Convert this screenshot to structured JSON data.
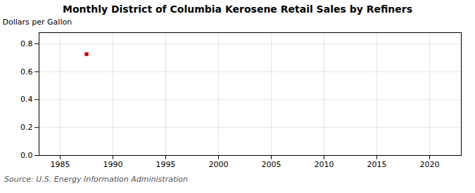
{
  "chart_data": {
    "type": "scatter",
    "title": "Monthly District of Columbia Kerosene Retail Sales by Refiners",
    "ylabel": "Dollars per Gallon",
    "source": "Source: U.S. Energy Information Administration",
    "x": [
      1987.5
    ],
    "values": [
      0.726
    ],
    "color": "#cc0000",
    "marker": "square",
    "xlim": [
      1983,
      2023
    ],
    "ylim": [
      0.0,
      0.88
    ],
    "xticks": [
      1985,
      1990,
      1995,
      2000,
      2005,
      2010,
      2015,
      2020
    ],
    "yticks": [
      {
        "value": 0.0,
        "label": "0.0"
      },
      0.2,
      0.4,
      0.6,
      0.8
    ],
    "grid": true
  }
}
